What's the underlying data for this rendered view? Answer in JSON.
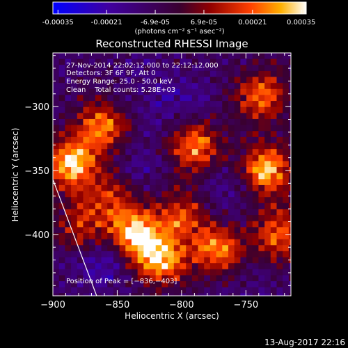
{
  "colorbar": {
    "tick_labels": [
      "-0.00035",
      "-0.00021",
      "-6.9e-05",
      "6.9e-05",
      "0.00021",
      "0.00035"
    ],
    "range": [
      -0.00035,
      0.00035
    ],
    "units": "(photons cm⁻² s⁻¹ asec⁻²)"
  },
  "chart_data": {
    "type": "heatmap",
    "title": "Reconstructed RHESSI Image",
    "xlabel": "Heliocentric X (arcsec)",
    "ylabel": "Heliocentric Y (arcsec)",
    "xlim": [
      -900,
      -715
    ],
    "ylim": [
      -448,
      -258
    ],
    "x_ticks": [
      -900,
      -850,
      -800,
      -750
    ],
    "x_tick_labels": [
      "−900",
      "−850",
      "−800",
      "−750"
    ],
    "y_ticks": [
      -300,
      -350,
      -400
    ],
    "y_tick_labels": [
      "−300",
      "−350",
      "−400"
    ],
    "annotations": [
      "27-Nov-2014 22:02:12.000 to 22:12:12.000",
      "Detectors: 3F 6F 9F, Att 0",
      "Energy Range: 25.0 - 50.0 keV",
      "Clean    Total counts: 5.28E+03"
    ],
    "peak_label": "Position of Peak = [−836,−403]",
    "peak": [
      -836,
      -403
    ],
    "limb_line": {
      "x": [
        -900,
        -866
      ],
      "y": [
        -357,
        -448
      ]
    },
    "grid": false,
    "bright_regions": [
      {
        "x": -885,
        "y": -345,
        "value": 0.00033
      },
      {
        "x": -862,
        "y": -315,
        "value": 0.00024
      },
      {
        "x": -836,
        "y": -400,
        "value": 0.00035
      },
      {
        "x": -815,
        "y": -420,
        "value": 0.00028
      },
      {
        "x": -790,
        "y": -330,
        "value": 0.00026
      },
      {
        "x": -772,
        "y": -412,
        "value": 0.00024
      },
      {
        "x": -735,
        "y": -350,
        "value": 0.00031
      },
      {
        "x": -725,
        "y": -400,
        "value": 0.00022
      },
      {
        "x": -738,
        "y": -292,
        "value": 0.00022
      },
      {
        "x": -800,
        "y": -385,
        "value": 0.00016
      },
      {
        "x": -878,
        "y": -395,
        "value": 0.00014
      },
      {
        "x": -855,
        "y": -372,
        "value": 0.00013
      }
    ],
    "dark_regions": [
      {
        "x": -862,
        "y": -420,
        "value": -0.00018
      },
      {
        "x": -800,
        "y": -300,
        "value": -0.00012
      },
      {
        "x": -760,
        "y": -365,
        "value": -0.0001
      },
      {
        "x": -832,
        "y": -345,
        "value": -8e-05
      },
      {
        "x": -830,
        "y": -285,
        "value": -6e-05
      },
      {
        "x": -750,
        "y": -440,
        "value": -6e-05
      }
    ]
  },
  "footer": {
    "timestamp": "13-Aug-2017 22:16"
  }
}
